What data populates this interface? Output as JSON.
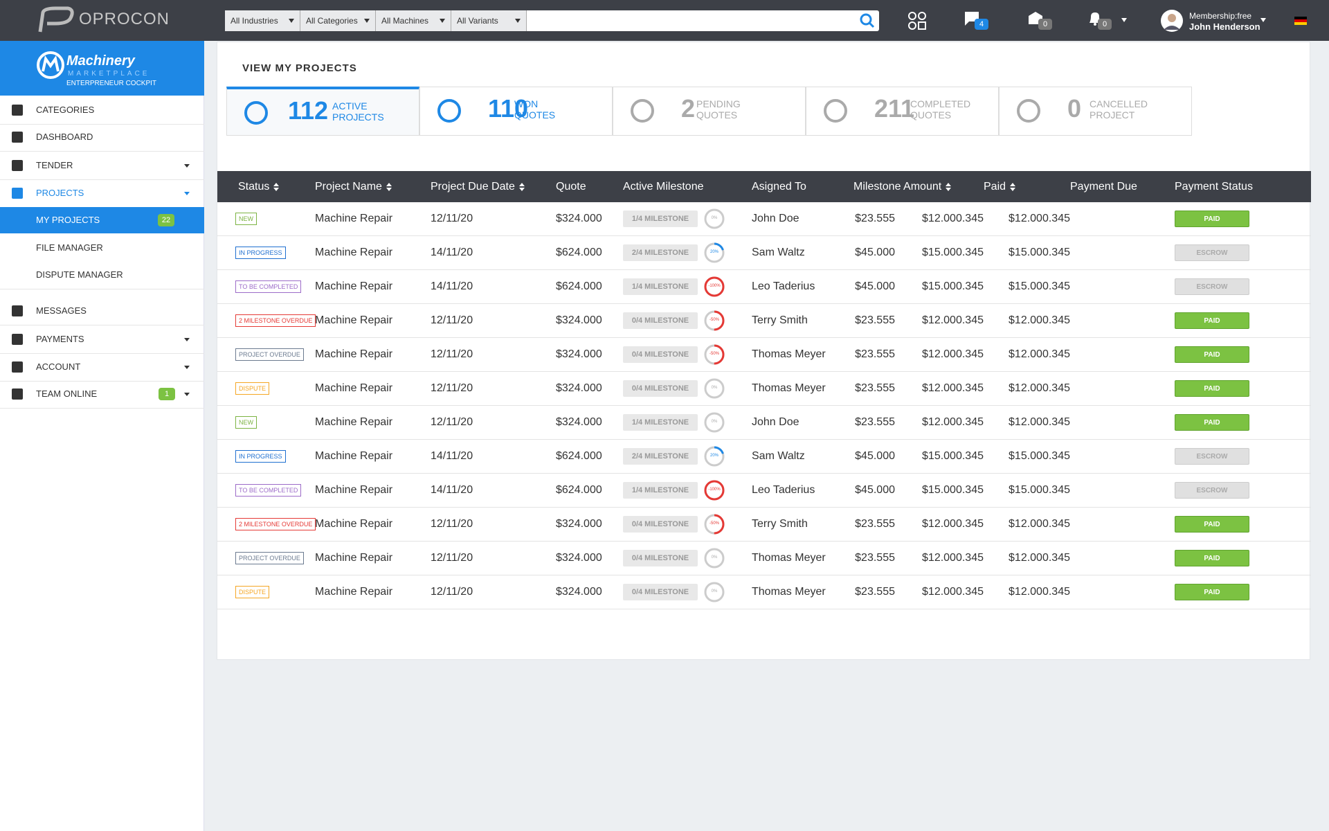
{
  "topbar": {
    "logo": "OPROCON",
    "filters": [
      "All Industries",
      "All Categories",
      "All Machines",
      "All Variants"
    ],
    "badges": [
      "4",
      "0",
      "0"
    ],
    "membership": "Membership:free",
    "user": "John Henderson"
  },
  "sidebar": {
    "brand": "Machinery",
    "brand_sub": "MARKETPLACE",
    "cockpit": "ENTERPRENEUR COCKPIT",
    "items": [
      {
        "label": "CATEGORIES"
      },
      {
        "label": "DASHBOARD"
      },
      {
        "label": "TENDER",
        "caret": true
      },
      {
        "label": "PROJECTS",
        "caret": true,
        "open": true
      },
      {
        "label": "MY PROJECTS",
        "sub": true,
        "active": true,
        "badge": "22"
      },
      {
        "label": "FILE MANAGER",
        "sub": true
      },
      {
        "label": "DISPUTE MANAGER",
        "sub": true
      },
      {
        "label": "MESSAGES"
      },
      {
        "label": "PAYMENTS",
        "caret": true
      },
      {
        "label": "ACCOUNT",
        "caret": true
      },
      {
        "label": "TEAM ONLINE",
        "caret": true,
        "badge": "1"
      }
    ]
  },
  "page_title": "VIEW MY PROJECTS",
  "stats": [
    {
      "number": "112",
      "label": [
        "ACTIVE",
        "PROJECTS"
      ],
      "active": true
    },
    {
      "number": "110",
      "label": [
        "WON",
        "QUOTES"
      ],
      "active": true
    },
    {
      "number": "2",
      "label": [
        "PENDING",
        "QUOTES"
      ]
    },
    {
      "number": "211",
      "label": [
        "COMPLETED",
        "QUOTES"
      ]
    },
    {
      "number": "0",
      "label": [
        "CANCELLED",
        "PROJECT"
      ]
    }
  ],
  "table": {
    "headers": [
      {
        "label": "Status",
        "sortable": true
      },
      {
        "label": "Project Name",
        "sortable": true
      },
      {
        "label": "Project Due Date",
        "sortable": true
      },
      {
        "label": "Quote"
      },
      {
        "label": "Active Milestone"
      },
      {
        "label": "Asigned To"
      },
      {
        "label": "Milestone Amount",
        "sortable": true
      },
      {
        "label": "Paid",
        "sortable": true
      },
      {
        "label": "Payment Due"
      },
      {
        "label": "Payment Status"
      }
    ],
    "rows": [
      {
        "status": {
          "label": "NEW",
          "color": "#7cb342"
        },
        "name": "Machine Repair",
        "due": "12/11/20",
        "quote": "$324.000",
        "milestone": "1/4 MILESTONE",
        "progress": {
          "value": 0,
          "label": "0%"
        },
        "assigned": "John Doe",
        "amount": "$23.555",
        "paid": "$12.000.345",
        "payment_due": "$12.000.345",
        "payment": {
          "label": "PAID",
          "color": "#7cc242"
        }
      },
      {
        "status": {
          "label": "IN PROGRESS",
          "color": "#1e6fd0"
        },
        "name": "Machine Repair",
        "due": "14/11/20",
        "quote": "$624.000",
        "milestone": "2/4 MILESTONE",
        "progress": {
          "value": 20,
          "label": "20%"
        },
        "assigned": "Sam Waltz",
        "amount": "$45.000",
        "paid": "$15.000.345",
        "payment_due": "$15.000.345",
        "payment": {
          "label": "ESCROW",
          "color": "#e0e0e0"
        }
      },
      {
        "status": {
          "label": "TO BE COMPLETED",
          "color": "#9c6bc8"
        },
        "name": "Machine Repair",
        "due": "14/11/20",
        "quote": "$624.000",
        "milestone": "1/4 MILESTONE",
        "progress": {
          "value": -100,
          "label": "-100%"
        },
        "assigned": "Leo Taderius",
        "amount": "$45.000",
        "paid": "$15.000.345",
        "payment_due": "$15.000.345",
        "payment": {
          "label": "ESCROW",
          "color": "#e0e0e0"
        }
      },
      {
        "status": {
          "label": "2 MILESTONE OVERDUE",
          "color": "#e53935"
        },
        "name": "Machine Repair",
        "due": "12/11/20",
        "quote": "$324.000",
        "milestone": "0/4 MILESTONE",
        "progress": {
          "value": -50,
          "label": "-50%"
        },
        "assigned": "Terry Smith",
        "amount": "$23.555",
        "paid": "$12.000.345",
        "payment_due": "$12.000.345",
        "payment": {
          "label": "PAID",
          "color": "#7cc242"
        }
      },
      {
        "status": {
          "label": "PROJECT OVERDUE",
          "color": "#6b7a8f"
        },
        "name": "Machine Repair",
        "due": "12/11/20",
        "quote": "$324.000",
        "milestone": "0/4 MILESTONE",
        "progress": {
          "value": -50,
          "label": "-50%"
        },
        "assigned": "Thomas Meyer",
        "amount": "$23.555",
        "paid": "$12.000.345",
        "payment_due": "$12.000.345",
        "payment": {
          "label": "PAID",
          "color": "#7cc242"
        }
      },
      {
        "status": {
          "label": "DISPUTE",
          "color": "#f5a623"
        },
        "name": "Machine Repair",
        "due": "12/11/20",
        "quote": "$324.000",
        "milestone": "0/4 MILESTONE",
        "progress": {
          "value": 0,
          "label": "0%"
        },
        "assigned": "Thomas Meyer",
        "amount": "$23.555",
        "paid": "$12.000.345",
        "payment_due": "$12.000.345",
        "payment": {
          "label": "PAID",
          "color": "#7cc242"
        }
      },
      {
        "status": {
          "label": "NEW",
          "color": "#7cb342"
        },
        "name": "Machine Repair",
        "due": "12/11/20",
        "quote": "$324.000",
        "milestone": "1/4 MILESTONE",
        "progress": {
          "value": 0,
          "label": "0%"
        },
        "assigned": "John Doe",
        "amount": "$23.555",
        "paid": "$12.000.345",
        "payment_due": "$12.000.345",
        "payment": {
          "label": "PAID",
          "color": "#7cc242"
        }
      },
      {
        "status": {
          "label": "IN PROGRESS",
          "color": "#1e6fd0"
        },
        "name": "Machine Repair",
        "due": "14/11/20",
        "quote": "$624.000",
        "milestone": "2/4 MILESTONE",
        "progress": {
          "value": 20,
          "label": "20%"
        },
        "assigned": "Sam Waltz",
        "amount": "$45.000",
        "paid": "$15.000.345",
        "payment_due": "$15.000.345",
        "payment": {
          "label": "ESCROW",
          "color": "#e0e0e0"
        }
      },
      {
        "status": {
          "label": "TO BE COMPLETED",
          "color": "#9c6bc8"
        },
        "name": "Machine Repair",
        "due": "14/11/20",
        "quote": "$624.000",
        "milestone": "1/4 MILESTONE",
        "progress": {
          "value": -100,
          "label": "-100%"
        },
        "assigned": "Leo Taderius",
        "amount": "$45.000",
        "paid": "$15.000.345",
        "payment_due": "$15.000.345",
        "payment": {
          "label": "ESCROW",
          "color": "#e0e0e0"
        }
      },
      {
        "status": {
          "label": "2 MILESTONE OVERDUE",
          "color": "#e53935"
        },
        "name": "Machine Repair",
        "due": "12/11/20",
        "quote": "$324.000",
        "milestone": "0/4 MILESTONE",
        "progress": {
          "value": -50,
          "label": "-50%"
        },
        "assigned": "Terry Smith",
        "amount": "$23.555",
        "paid": "$12.000.345",
        "payment_due": "$12.000.345",
        "payment": {
          "label": "PAID",
          "color": "#7cc242"
        }
      },
      {
        "status": {
          "label": "PROJECT OVERDUE",
          "color": "#6b7a8f"
        },
        "name": "Machine Repair",
        "due": "12/11/20",
        "quote": "$324.000",
        "milestone": "0/4 MILESTONE",
        "progress": {
          "value": 0,
          "label": "0%"
        },
        "assigned": "Thomas Meyer",
        "amount": "$23.555",
        "paid": "$12.000.345",
        "payment_due": "$12.000.345",
        "payment": {
          "label": "PAID",
          "color": "#7cc242"
        }
      },
      {
        "status": {
          "label": "DISPUTE",
          "color": "#f5a623"
        },
        "name": "Machine Repair",
        "due": "12/11/20",
        "quote": "$324.000",
        "milestone": "0/4 MILESTONE",
        "progress": {
          "value": 0,
          "label": "0%"
        },
        "assigned": "Thomas Meyer",
        "amount": "$23.555",
        "paid": "$12.000.345",
        "payment_due": "$12.000.345",
        "payment": {
          "label": "PAID",
          "color": "#7cc242"
        }
      }
    ]
  }
}
